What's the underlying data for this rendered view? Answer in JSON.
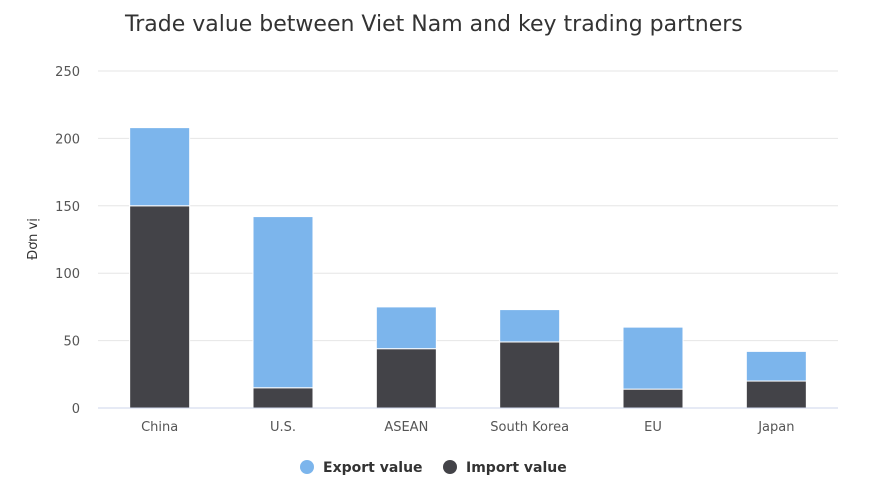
{
  "chart_data": {
    "type": "bar",
    "stacked": true,
    "title": "Trade value between Viet Nam and key trading partners",
    "xlabel": "",
    "ylabel": "Đơn vị",
    "ylim": [
      0,
      250
    ],
    "yticks": [
      0,
      50,
      100,
      150,
      200,
      250
    ],
    "grid": true,
    "legend_position": "bottom-center",
    "categories": [
      "China",
      "U.S.",
      "ASEAN",
      "South Korea",
      "EU",
      "Japan"
    ],
    "series": [
      {
        "name": "Import value",
        "color": "#434348",
        "values": [
          150,
          15,
          44,
          49,
          14,
          20
        ]
      },
      {
        "name": "Export value",
        "color": "#7cb5ec",
        "values": [
          58,
          127,
          31,
          24,
          46,
          22
        ]
      }
    ],
    "legend_order": [
      "Export value",
      "Import value"
    ]
  }
}
